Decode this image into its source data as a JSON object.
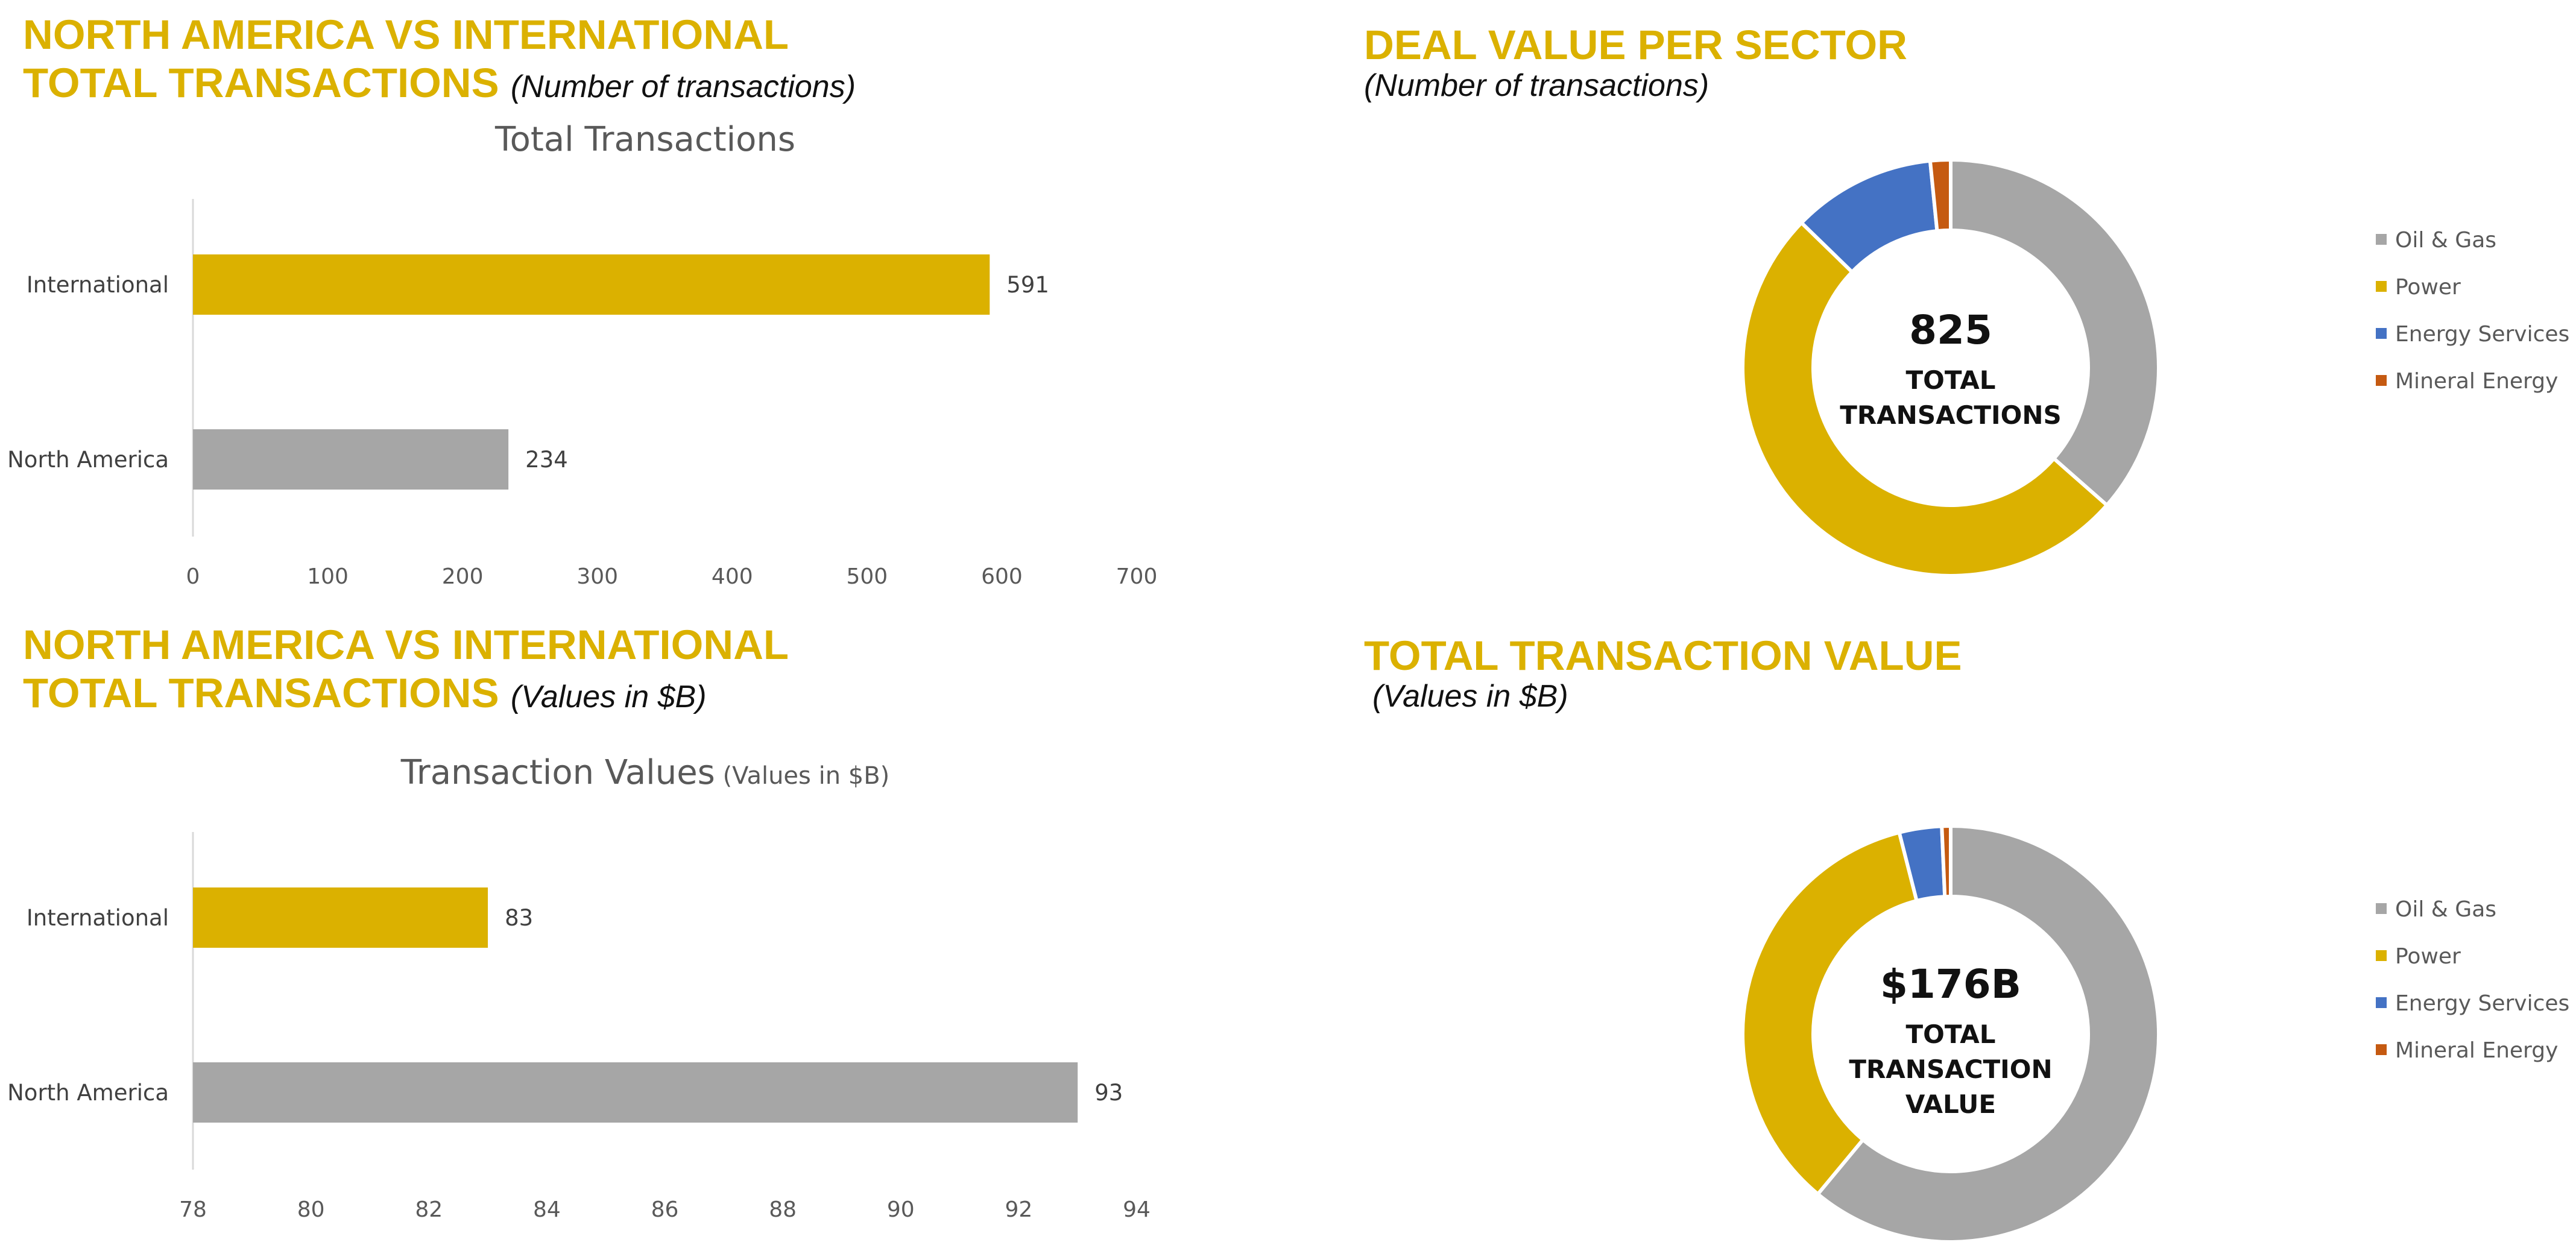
{
  "panels": {
    "tl": {
      "heading_line1": "NORTH AMERICA VS INTERNATIONAL",
      "heading_line2": "TOTAL TRANSACTIONS",
      "heading_sub": "(Number of transactions)"
    },
    "tr": {
      "heading": "DEAL VALUE PER SECTOR",
      "heading_sub": "(Number of transactions)"
    },
    "bl": {
      "heading_line1": "NORTH AMERICA VS INTERNATIONAL",
      "heading_line2": "TOTAL TRANSACTIONS",
      "heading_sub": "(Values in $B)"
    },
    "br": {
      "heading": "TOTAL TRANSACTION VALUE",
      "heading_sub": "(Values in $B)"
    }
  },
  "chart_data": [
    {
      "type": "bar",
      "orientation": "horizontal",
      "title": "Total Transactions",
      "categories": [
        "International",
        "North America"
      ],
      "values": [
        591,
        234
      ],
      "colors": [
        "#dbb100",
        "#a6a6a6"
      ],
      "xlim": [
        0,
        700
      ],
      "xticks": [
        "0",
        "100",
        "200",
        "300",
        "400",
        "500",
        "600",
        "700"
      ],
      "data_labels": [
        "591",
        "234"
      ]
    },
    {
      "type": "bar",
      "orientation": "horizontal",
      "title": "Transaction Values",
      "title_suffix": "(Values in $B)",
      "categories": [
        "International",
        "North America"
      ],
      "values": [
        83,
        93
      ],
      "colors": [
        "#dbb100",
        "#a6a6a6"
      ],
      "xlim": [
        78,
        94
      ],
      "xticks": [
        "78",
        "80",
        "82",
        "84",
        "86",
        "88",
        "90",
        "92",
        "94"
      ],
      "data_labels": [
        "83",
        "93"
      ]
    },
    {
      "type": "pie",
      "donut": true,
      "slices": [
        {
          "label": "Oil & Gas",
          "value": 301,
          "color": "#a6a6a6"
        },
        {
          "label": "Power",
          "value": 419,
          "color": "#dbb100"
        },
        {
          "label": "Energy Services",
          "value": 92,
          "color": "#4472c4"
        },
        {
          "label": "Mineral Energy",
          "value": 13,
          "color": "#c55a11"
        }
      ],
      "center_value": "825",
      "center_label_lines": [
        "TOTAL",
        "TRANSACTIONS"
      ],
      "legend_position": "right"
    },
    {
      "type": "pie",
      "donut": true,
      "slices": [
        {
          "label": "Oil & Gas",
          "value": 107.4,
          "color": "#a6a6a6"
        },
        {
          "label": "Power",
          "value": 61.6,
          "color": "#dbb100"
        },
        {
          "label": "Energy Services",
          "value": 5.8,
          "color": "#4472c4"
        },
        {
          "label": "Mineral Energy",
          "value": 1.2,
          "color": "#c55a11"
        }
      ],
      "center_value": "$176B",
      "center_label_lines": [
        "TOTAL",
        "TRANSACTION",
        "VALUE"
      ],
      "legend_position": "right"
    }
  ]
}
